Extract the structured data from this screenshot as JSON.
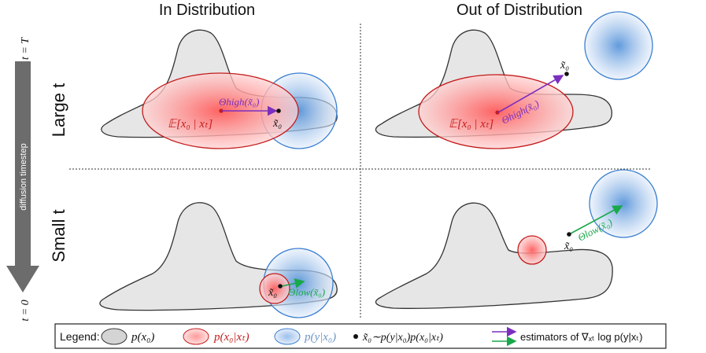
{
  "headers": {
    "in_dist": "In Distribution",
    "out_dist": "Out of Distribution"
  },
  "rows": {
    "large": "Large t",
    "small": "Small t"
  },
  "time_axis": {
    "top": "t = T",
    "bottom": "t = 0",
    "label": "diffusion timestep"
  },
  "labels": {
    "expectation": "𝔼[x₀ | xₜ]",
    "x0_tilde": "x̃₀",
    "theta_high": "Θhigh(x̃₀)",
    "theta_low": "Θlow(x̃₀)"
  },
  "legend": {
    "title": "Legend:",
    "p_x0": "p(x₀)",
    "p_x0_xt": "p(x₀|xₜ)",
    "p_y_x0": "p(y|x₀)",
    "sample": "x̃₀∼p(y|x₀)p(x₀|xₜ)",
    "estimators": "estimators of ∇ₓₜ log p(y|xₜ)"
  },
  "colors": {
    "red": "#d22020",
    "blue": "#3a7fd0",
    "purple": "#7b2fbf",
    "green": "#19a84a",
    "gray_fill": "#e6e6e6"
  }
}
